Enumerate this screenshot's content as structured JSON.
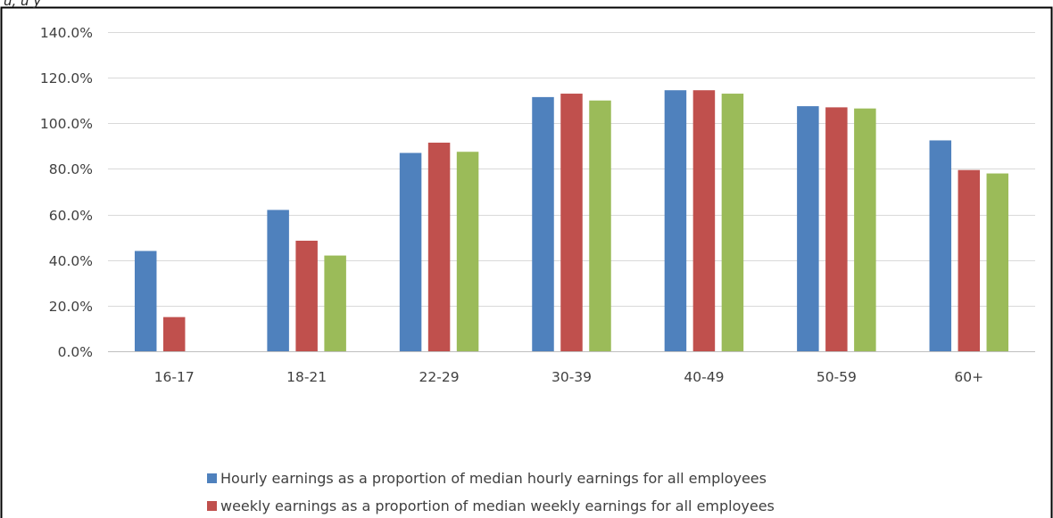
{
  "chart_data": {
    "type": "bar",
    "categories": [
      "16-17",
      "18-21",
      "22-29",
      "30-39",
      "40-49",
      "50-59",
      "60+"
    ],
    "series": [
      {
        "name": "Hourly earnings as a proportion of median hourly earnings for all employees",
        "color": "#4f81bd",
        "values": [
          44.0,
          62.0,
          87.0,
          111.5,
          114.5,
          107.5,
          92.5
        ]
      },
      {
        "name": "weekly earnings as a proportion of median weekly earnings for all employees",
        "color": "#c0504d",
        "values": [
          15.0,
          48.5,
          91.5,
          113.0,
          114.5,
          107.0,
          79.5
        ]
      },
      {
        "name": "",
        "color": "#9bbb59",
        "values": [
          null,
          42.0,
          87.5,
          110.0,
          113.0,
          106.5,
          78.0
        ]
      }
    ],
    "yticks": [
      "0.0%",
      "20.0%",
      "40.0%",
      "60.0%",
      "80.0%",
      "100.0%",
      "120.0%",
      "140.0%"
    ],
    "ylim": [
      0,
      140
    ],
    "title": "",
    "xlabel": "",
    "ylabel": "",
    "grid": true,
    "legend_position": "bottom",
    "partial_top_text": "u,     u  y"
  }
}
